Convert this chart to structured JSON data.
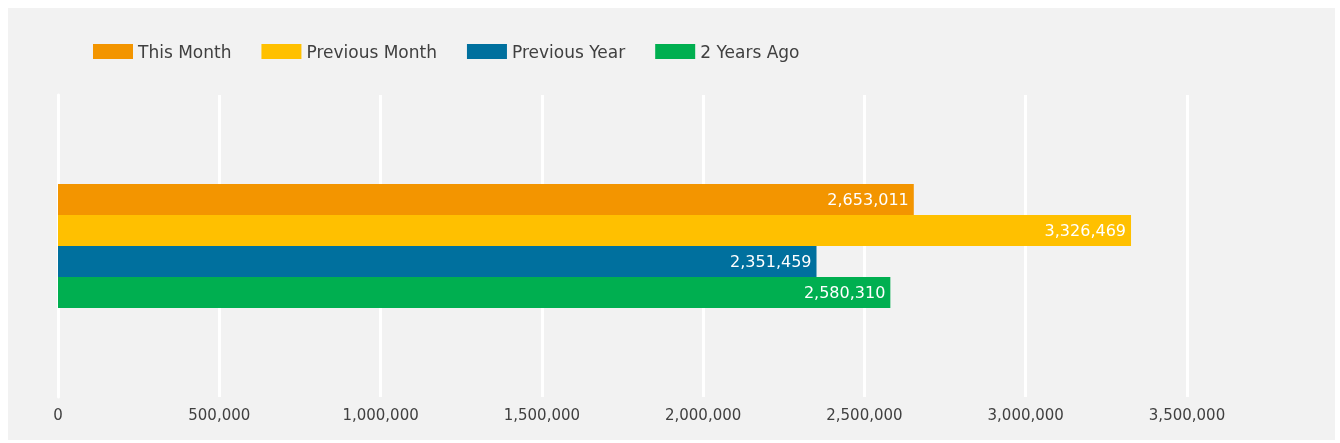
{
  "chart_data": {
    "type": "bar",
    "orientation": "horizontal",
    "categories": [
      null
    ],
    "series": [
      {
        "name": "This Month",
        "color": "#f39500",
        "values": [
          2653011
        ],
        "value_labels": [
          "2,653,011"
        ]
      },
      {
        "name": "Previous Month",
        "color": "#ffc000",
        "values": [
          3326469
        ],
        "value_labels": [
          "3,326,469"
        ]
      },
      {
        "name": "Previous Year",
        "color": "#00709e",
        "values": [
          2351459
        ],
        "value_labels": [
          "2,351,459"
        ]
      },
      {
        "name": "2 Years Ago",
        "color": "#00af50",
        "values": [
          2580310
        ],
        "value_labels": [
          "2,580,310"
        ]
      }
    ],
    "xlim": [
      0,
      3500000
    ],
    "xticks": [
      0,
      {
        "value": 500000,
        "label": "500,000"
      },
      {
        "value": 1000000,
        "label": "1,000,000"
      },
      {
        "value": 1500000,
        "label": "1,500,000"
      },
      {
        "value": 2000000,
        "label": "2,000,000"
      },
      {
        "value": 2500000,
        "label": "2,500,000"
      },
      {
        "value": 3000000,
        "label": "3,000,000"
      },
      {
        "value": 3500000,
        "label": "3,500,000"
      }
    ],
    "grid": "x",
    "legend": "top left"
  }
}
